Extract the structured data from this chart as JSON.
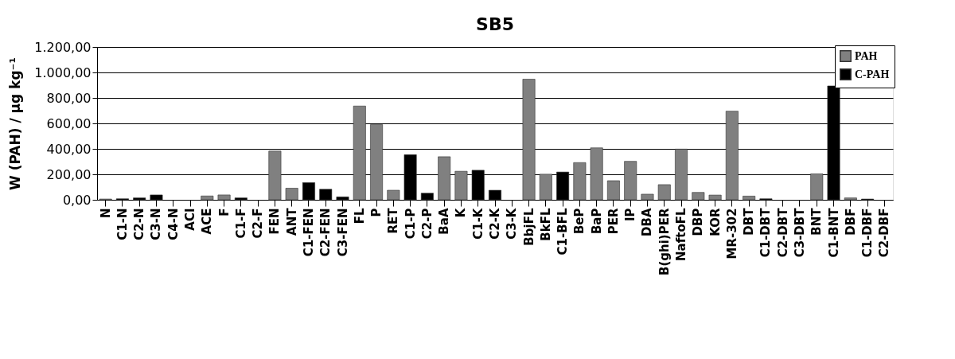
{
  "chart_data": {
    "type": "bar",
    "title": "SB5",
    "ylabel": "W (PAH) / µg kg⁻¹",
    "categories": [
      "N",
      "C1-N",
      "C2-N",
      "C3-N",
      "C4-N",
      "ACI",
      "ACE",
      "F",
      "C1-F",
      "C2-F",
      "FEN",
      "ANT",
      "C1-FEN",
      "C2-FEN",
      "C3-FEN",
      "FL",
      "P",
      "RET",
      "C1-P",
      "C2-P",
      "BaA",
      "K",
      "C1-K",
      "C2-K",
      "C3-K",
      "BbjFL",
      "BkFL",
      "C1-BFL",
      "BeP",
      "BaP",
      "PER",
      "IP",
      "DBA",
      "B(ghi)PER",
      "NaftoFL",
      "DBP",
      "KOR",
      "MR-302",
      "DBT",
      "C1-DBT",
      "C2-DBT",
      "C3-DBT",
      "BNT",
      "C1-BNT",
      "DBF",
      "C1-DBF",
      "C2-DBF"
    ],
    "series": [
      {
        "name": "PAH",
        "color": "#808080",
        "values": [
          6,
          null,
          null,
          null,
          null,
          null,
          30,
          38,
          null,
          null,
          383,
          91,
          null,
          null,
          null,
          736,
          591,
          75,
          null,
          null,
          338,
          224,
          null,
          null,
          null,
          947,
          201,
          null,
          292,
          408,
          150,
          302,
          44,
          119,
          398,
          58,
          37,
          696,
          29,
          null,
          null,
          null,
          204,
          null,
          15,
          null,
          null
        ]
      },
      {
        "name": "C-PAH",
        "color": "#000000",
        "values": [
          null,
          8,
          15,
          38,
          null,
          null,
          null,
          null,
          15,
          null,
          null,
          null,
          135,
          83,
          23,
          null,
          null,
          null,
          354,
          52,
          null,
          null,
          232,
          75,
          null,
          null,
          null,
          218,
          null,
          null,
          null,
          null,
          null,
          null,
          null,
          null,
          null,
          null,
          null,
          8,
          null,
          null,
          null,
          894,
          null,
          6,
          null
        ]
      }
    ],
    "ylim": [
      0,
      1200
    ],
    "yticks": [
      {
        "value": 0,
        "label": "0,00"
      },
      {
        "value": 200,
        "label": "200,00"
      },
      {
        "value": 400,
        "label": "400,00"
      },
      {
        "value": 600,
        "label": "600,00"
      },
      {
        "value": 800,
        "label": "800,00"
      },
      {
        "value": 1000,
        "label": "1.000,00"
      },
      {
        "value": 1200,
        "label": "1.200,00"
      }
    ],
    "grid": "y",
    "legend": "top right"
  }
}
